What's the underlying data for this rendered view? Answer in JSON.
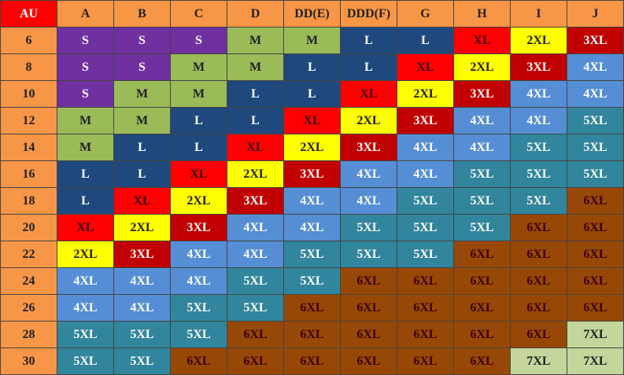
{
  "table": {
    "header": [
      "AU",
      "A",
      "B",
      "C",
      "D",
      "DD(E)",
      "DDD(F)",
      "G",
      "H",
      "I",
      "J"
    ],
    "rows": [
      [
        "6",
        "S",
        "S",
        "S",
        "M",
        "M",
        "L",
        "L",
        "XL",
        "2XL",
        "3XL"
      ],
      [
        "8",
        "S",
        "S",
        "M",
        "M",
        "L",
        "L",
        "XL",
        "2XL",
        "3XL",
        "4XL"
      ],
      [
        "10",
        "S",
        "M",
        "M",
        "L",
        "L",
        "XL",
        "2XL",
        "3XL",
        "4XL",
        "4XL"
      ],
      [
        "12",
        "M",
        "M",
        "L",
        "L",
        "XL",
        "2XL",
        "3XL",
        "4XL",
        "4XL",
        "5XL"
      ],
      [
        "14",
        "M",
        "L",
        "L",
        "XL",
        "2XL",
        "3XL",
        "4XL",
        "4XL",
        "5XL",
        "5XL"
      ],
      [
        "16",
        "L",
        "L",
        "XL",
        "2XL",
        "3XL",
        "4XL",
        "4XL",
        "5XL",
        "5XL",
        "5XL"
      ],
      [
        "18",
        "L",
        "XL",
        "2XL",
        "3XL",
        "4XL",
        "4XL",
        "5XL",
        "5XL",
        "5XL",
        "6XL"
      ],
      [
        "20",
        "XL",
        "2XL",
        "3XL",
        "4XL",
        "4XL",
        "5XL",
        "5XL",
        "5XL",
        "6XL",
        "6XL"
      ],
      [
        "22",
        "2XL",
        "3XL",
        "4XL",
        "4XL",
        "5XL",
        "5XL",
        "5XL",
        "6XL",
        "6XL",
        "6XL"
      ],
      [
        "24",
        "4XL",
        "4XL",
        "4XL",
        "5XL",
        "5XL",
        "6XL",
        "6XL",
        "6XL",
        "6XL",
        "6XL"
      ],
      [
        "26",
        "4XL",
        "4XL",
        "5XL",
        "5XL",
        "6XL",
        "6XL",
        "6XL",
        "6XL",
        "6XL",
        "6XL"
      ],
      [
        "28",
        "5XL",
        "5XL",
        "5XL",
        "6XL",
        "6XL",
        "6XL",
        "6XL",
        "6XL",
        "6XL",
        "7XL"
      ],
      [
        "30",
        "5XL",
        "5XL",
        "6XL",
        "6XL",
        "6XL",
        "6XL",
        "6XL",
        "6XL",
        "7XL",
        "7XL"
      ]
    ],
    "size_colors": {
      "S": "#7030a0",
      "M": "#9bbb59",
      "L": "#1f497d",
      "XL": "#ff0000",
      "2XL": "#ffff00",
      "3XL": "#c00000",
      "4XL": "#558ed5",
      "5XL": "#31859c",
      "6XL": "#984806",
      "7XL": "#c3d69b"
    }
  }
}
